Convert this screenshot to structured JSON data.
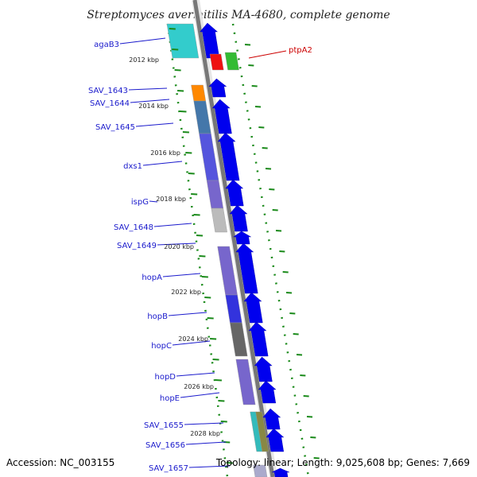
{
  "title": "Streptomyces avermitilis MA-4680, complete genome",
  "footer": {
    "accession": "Accession: NC_003155",
    "summary": "Topology: linear; Length: 9,025,608 bp; Genes: 7,669"
  },
  "colors": {
    "label": "#1a1acc",
    "label_right": "#cc0000",
    "tick": "#1a8a1a",
    "backbone": "#777777",
    "arrow": "#0000ee"
  },
  "coordinates": [
    {
      "text": "2012 kbp"
    },
    {
      "text": "2014 kbp"
    },
    {
      "text": "2016 kbp"
    },
    {
      "text": "2018 kbp"
    },
    {
      "text": "2020 kbp"
    },
    {
      "text": "2022 kbp"
    },
    {
      "text": "2024 kbp"
    },
    {
      "text": "2026 kbp"
    },
    {
      "text": "2028 kbp"
    }
  ],
  "genes_left": [
    {
      "name": "agaB3",
      "color": "#33cccc"
    },
    {
      "name": "SAV_1643",
      "color": "#ff8800"
    },
    {
      "name": "SAV_1644",
      "color": "#ff8800"
    },
    {
      "name": "SAV_1645",
      "color": "#4477aa"
    },
    {
      "name": "dxs1",
      "color": "#5555dd"
    },
    {
      "name": "ispG",
      "color": "#7766cc"
    },
    {
      "name": "SAV_1648",
      "color": "#bbbbbb"
    },
    {
      "name": "SAV_1649",
      "color": "#ffffff"
    },
    {
      "name": "hopA",
      "color": "#7766cc"
    },
    {
      "name": "hopB",
      "color": "#3333dd"
    },
    {
      "name": "hopC",
      "color": "#666666"
    },
    {
      "name": "hopD",
      "color": "#7766cc"
    },
    {
      "name": "hopE",
      "color": "#8877cc"
    },
    {
      "name": "SAV_1655",
      "color": "#33bbbb"
    },
    {
      "name": "SAV_1656",
      "color": "#888844"
    },
    {
      "name": "SAV_1657",
      "color": "#aaaacc"
    }
  ],
  "genes_right": [
    {
      "name": "ptpA2",
      "color": "#ee1111"
    },
    {
      "name": "",
      "color": "#33bb33"
    }
  ]
}
